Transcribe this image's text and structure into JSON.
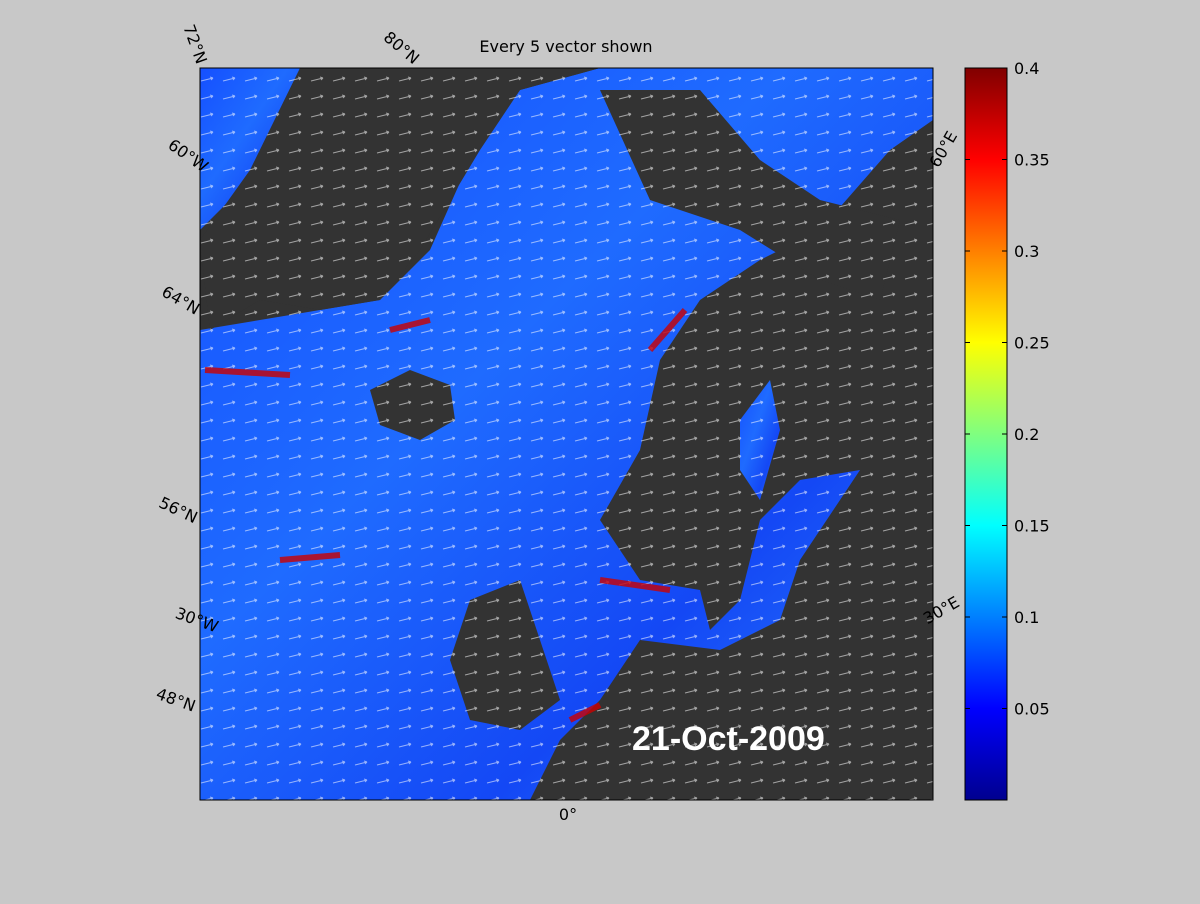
{
  "title": "Every 5 vector shown",
  "date_label": "21-Oct-2009",
  "graticule_labels": {
    "top": [
      "72°N",
      "80°N"
    ],
    "left": [
      "60°W",
      "64°N",
      "56°N",
      "30°W",
      "48°N"
    ],
    "right": [
      "60°E",
      "30°E"
    ],
    "bottom": [
      "0°"
    ]
  },
  "colorbar": {
    "ylim": [
      0,
      0.4
    ],
    "yticks": [
      0.05,
      0.1,
      0.15,
      0.2,
      0.25,
      0.3,
      0.35,
      0.4
    ]
  }
}
